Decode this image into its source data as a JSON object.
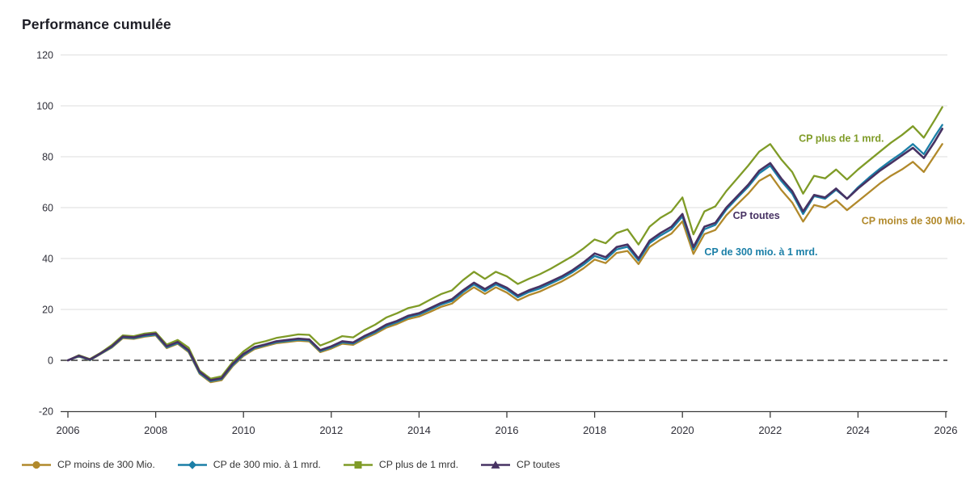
{
  "chart_data": {
    "type": "line",
    "title": "Performance cumulée",
    "xlabel": "",
    "ylabel": "",
    "xlim": [
      2006,
      2026
    ],
    "ylim": [
      -20,
      120
    ],
    "x_ticks": [
      2006,
      2008,
      2010,
      2012,
      2014,
      2016,
      2018,
      2020,
      2022,
      2024,
      2026
    ],
    "y_ticks": [
      -20,
      0,
      20,
      40,
      60,
      80,
      100,
      120
    ],
    "grid": "horizontal",
    "zero_line_dashed": true,
    "legend_position": "bottom",
    "x": [
      2006,
      2006.25,
      2006.5,
      2006.75,
      2007,
      2007.25,
      2007.5,
      2007.75,
      2008,
      2008.25,
      2008.5,
      2008.75,
      2009,
      2009.25,
      2009.5,
      2009.75,
      2010,
      2010.25,
      2010.5,
      2010.75,
      2011,
      2011.25,
      2011.5,
      2011.75,
      2012,
      2012.25,
      2012.5,
      2012.75,
      2013,
      2013.25,
      2013.5,
      2013.75,
      2014,
      2014.25,
      2014.5,
      2014.75,
      2015,
      2015.25,
      2015.5,
      2015.75,
      2016,
      2016.25,
      2016.5,
      2016.75,
      2017,
      2017.25,
      2017.5,
      2017.75,
      2018,
      2018.25,
      2018.5,
      2018.75,
      2019,
      2019.25,
      2019.5,
      2019.75,
      2020,
      2020.25,
      2020.5,
      2020.75,
      2021,
      2021.25,
      2021.5,
      2021.75,
      2022,
      2022.25,
      2022.5,
      2022.75,
      2023,
      2023.25,
      2023.5,
      2023.75,
      2024,
      2024.25,
      2024.5,
      2024.75,
      2025,
      2025.25,
      2025.5,
      2025.75,
      2025.92
    ],
    "series": [
      {
        "name": "CP moins de 300 Mio.",
        "color": "#B1892B",
        "marker": "circle",
        "values": [
          0,
          1.5,
          0,
          2.5,
          5,
          8.7,
          8.4,
          9.3,
          9.8,
          4.8,
          6.5,
          3.2,
          -5.3,
          -8.6,
          -7.8,
          -2.4,
          1.7,
          4.4,
          5.6,
          6.7,
          7.2,
          7.7,
          7.4,
          3.2,
          4.6,
          6.5,
          6.1,
          8.4,
          10.4,
          12.8,
          14.3,
          16.2,
          17.2,
          19,
          21,
          22.3,
          25.8,
          28.7,
          26.1,
          28.7,
          26.6,
          23.6,
          25.6,
          27,
          29,
          31,
          33.4,
          36.2,
          39.6,
          38.2,
          42.2,
          43,
          37.8,
          44.5,
          47.4,
          49.8,
          54.6,
          41.8,
          49.6,
          51.2,
          57,
          61.3,
          65.5,
          70.5,
          73,
          67,
          62,
          54.5,
          61,
          60,
          63,
          59,
          62.5,
          66,
          69.5,
          72.5,
          75,
          78,
          74,
          80.5,
          85
        ]
      },
      {
        "name": "CP de 300 mio. à 1 mrd.",
        "color": "#1B7FA7",
        "marker": "diamond",
        "values": [
          0,
          1.6,
          0.1,
          2.6,
          5.2,
          9,
          8.7,
          9.6,
          10.1,
          5.1,
          6.8,
          3.6,
          -5,
          -8.2,
          -7.4,
          -2,
          2.1,
          4.8,
          6,
          7.1,
          7.6,
          8.1,
          7.8,
          3.6,
          5.1,
          7,
          6.6,
          9,
          11,
          13.4,
          15,
          16.9,
          18,
          19.9,
          21.9,
          23.3,
          26.8,
          29.8,
          27.2,
          29.8,
          27.8,
          24.8,
          26.8,
          28.2,
          30.2,
          32.2,
          34.7,
          37.6,
          41,
          39.6,
          43.6,
          44.6,
          39.2,
          46,
          49,
          51.5,
          56.5,
          43.5,
          51.5,
          53.2,
          59.2,
          63.8,
          68.2,
          73.5,
          76.5,
          70.5,
          65.5,
          57.5,
          64.5,
          63.5,
          67,
          63.5,
          68,
          71.8,
          75.3,
          78.5,
          81.5,
          85,
          81,
          88,
          92.5
        ]
      },
      {
        "name": "CP plus de 1 mrd.",
        "color": "#7F9B27",
        "marker": "square",
        "values": [
          0,
          2,
          0.5,
          3,
          6,
          9.8,
          9.5,
          10.5,
          11,
          6.2,
          8,
          5,
          -4,
          -7.2,
          -6.3,
          -0.8,
          3.5,
          6.5,
          7.5,
          8.8,
          9.5,
          10.2,
          10,
          5.8,
          7.5,
          9.5,
          9,
          11.8,
          14,
          16.8,
          18.5,
          20.5,
          21.5,
          23.8,
          26,
          27.5,
          31.5,
          34.8,
          32,
          34.8,
          33,
          30,
          32,
          33.8,
          36,
          38.5,
          41,
          44,
          47.5,
          46,
          50,
          51.5,
          45.5,
          52.5,
          56,
          58.5,
          64,
          49.5,
          58.5,
          60.5,
          66.5,
          71.5,
          76.5,
          82,
          85,
          79,
          74,
          65.5,
          72.5,
          71.5,
          75,
          71,
          75,
          78.5,
          82,
          85.5,
          88.5,
          92,
          87.5,
          94.5,
          99.5
        ]
      },
      {
        "name": "CP toutes",
        "color": "#473263",
        "marker": "triangle",
        "values": [
          0,
          1.8,
          0.3,
          2.8,
          5.5,
          9.3,
          9,
          10,
          10.5,
          5.5,
          7.2,
          4,
          -4.5,
          -7.8,
          -7,
          -1.5,
          2.5,
          5.2,
          6.3,
          7.5,
          8,
          8.5,
          8.2,
          4,
          5.5,
          7.5,
          7,
          9.5,
          11.5,
          14,
          15.5,
          17.5,
          18.5,
          20.5,
          22.5,
          24,
          27.5,
          30.5,
          28,
          30.5,
          28.5,
          25.5,
          27.5,
          29,
          31,
          33,
          35.5,
          38.5,
          42,
          40.5,
          44.5,
          45.5,
          40,
          47,
          50,
          52.5,
          57.5,
          44.5,
          52.5,
          54,
          60,
          64.5,
          69,
          74.5,
          77.5,
          71.5,
          66.5,
          58.5,
          65,
          64,
          67.5,
          63.5,
          67.5,
          71,
          74.5,
          77.5,
          80.5,
          83.5,
          79.5,
          86,
          91
        ]
      }
    ],
    "annotations": [
      {
        "text": "CP plus de 1 mrd.",
        "series": 2,
        "year": 2022.65,
        "value": 85.8
      },
      {
        "text": "CP toutes",
        "series": 3,
        "year": 2021.15,
        "value": 55.5
      },
      {
        "text": "CP moins de 300 Mio.",
        "series": 0,
        "year": 2024.08,
        "value": 53.5
      },
      {
        "text": "CP de 300 mio. à 1 mrd.",
        "series": 1,
        "year": 2020.5,
        "value": 41.2
      }
    ]
  },
  "style_colors": {
    "grid": "#DEDEDE",
    "zero_line": "#111111",
    "axis_line": "#3C3C3C",
    "tick_text": "#2e2e38",
    "title_text": "#1e1e26"
  }
}
